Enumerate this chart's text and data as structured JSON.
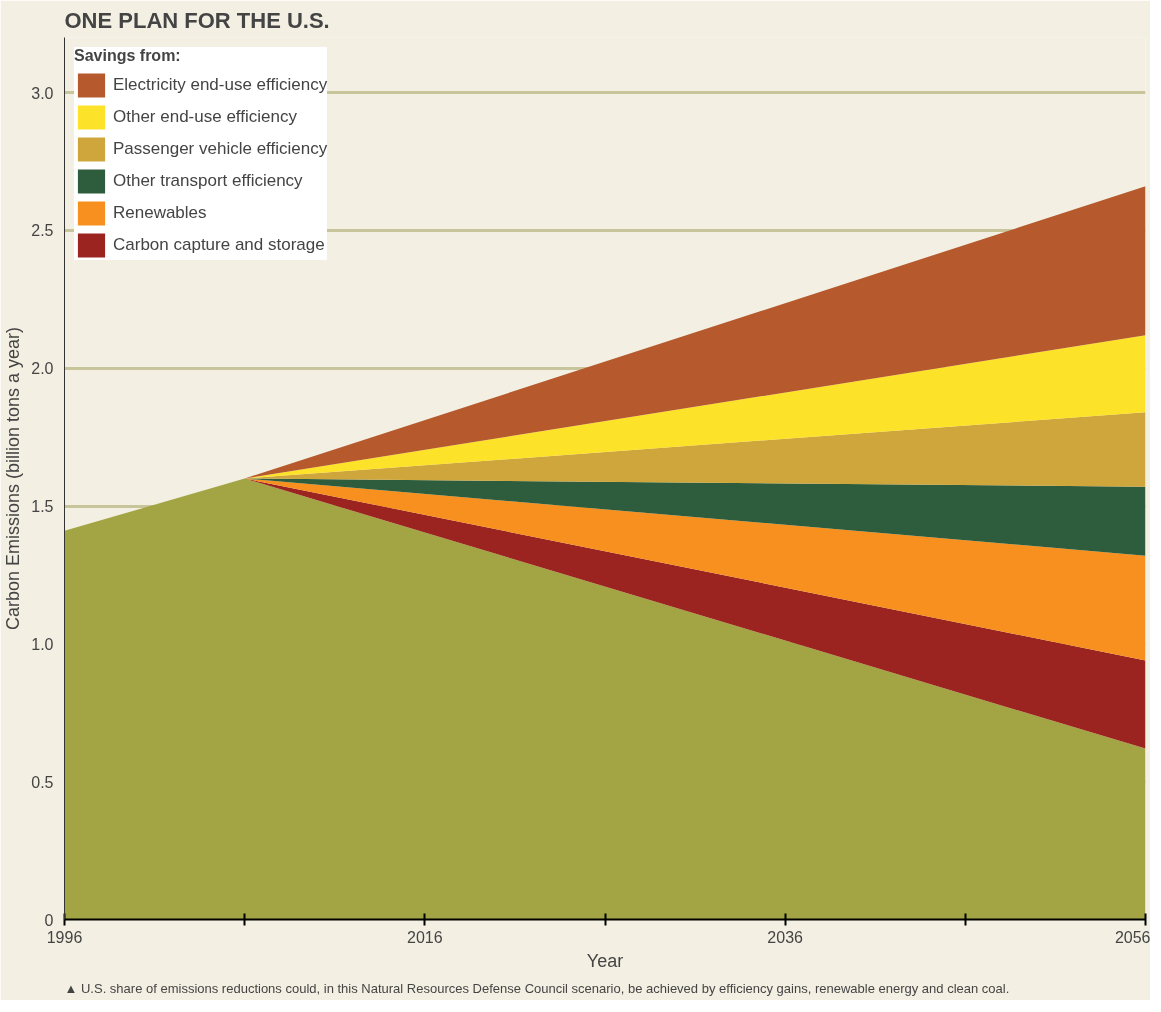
{
  "chart_data": {
    "type": "area",
    "stacked": true,
    "title": "ONE PLAN FOR THE U.S.",
    "xlabel": "Year",
    "ylabel": "Carbon Emissions (billion tons a year)",
    "legend_title": "Savings from:",
    "x": [
      1996,
      2006,
      2056
    ],
    "series": [
      {
        "color": "#a3a544",
        "values": [
          1.41,
          1.6,
          0.62
        ]
      },
      {
        "name": "Carbon capture and storage",
        "color": "#9b2420",
        "values": [
          0,
          0,
          0.32
        ]
      },
      {
        "name": "Renewables",
        "color": "#f7901e",
        "values": [
          0,
          0,
          0.38
        ]
      },
      {
        "name": "Other transport efficiency",
        "color": "#2e5d3e",
        "values": [
          0,
          0,
          0.25
        ]
      },
      {
        "name": "Passenger vehicle efficiency",
        "color": "#cfa63c",
        "values": [
          0,
          0,
          0.27
        ]
      },
      {
        "name": "Other end-use efficiency",
        "color": "#fde22a",
        "values": [
          0,
          0,
          0.28
        ]
      },
      {
        "name": "Electricity end-use efficiency",
        "color": "#b65a2e",
        "values": [
          0,
          0,
          0.54
        ]
      }
    ],
    "xlim": [
      1996,
      2056
    ],
    "xticks": [
      1996,
      {
        "value": 2006,
        "label": null
      },
      2016,
      {
        "value": 2026,
        "label": null
      },
      2036,
      {
        "value": 2046,
        "label": null
      },
      2056
    ],
    "ylim": [
      0,
      3.2
    ],
    "yticks": [
      0,
      0.5,
      {
        "value": 1,
        "label": "1.0"
      },
      1.5,
      {
        "value": 2,
        "label": "2.0"
      },
      2.5,
      {
        "value": 3,
        "label": "3.0"
      }
    ],
    "grid": "y",
    "legend": "top left",
    "annotations": [
      "▲ U.S. share of emissions reductions could, in this Natural Resources Defense Council scenario, be achieved by efficiency gains, renewable energy and clean coal."
    ]
  }
}
